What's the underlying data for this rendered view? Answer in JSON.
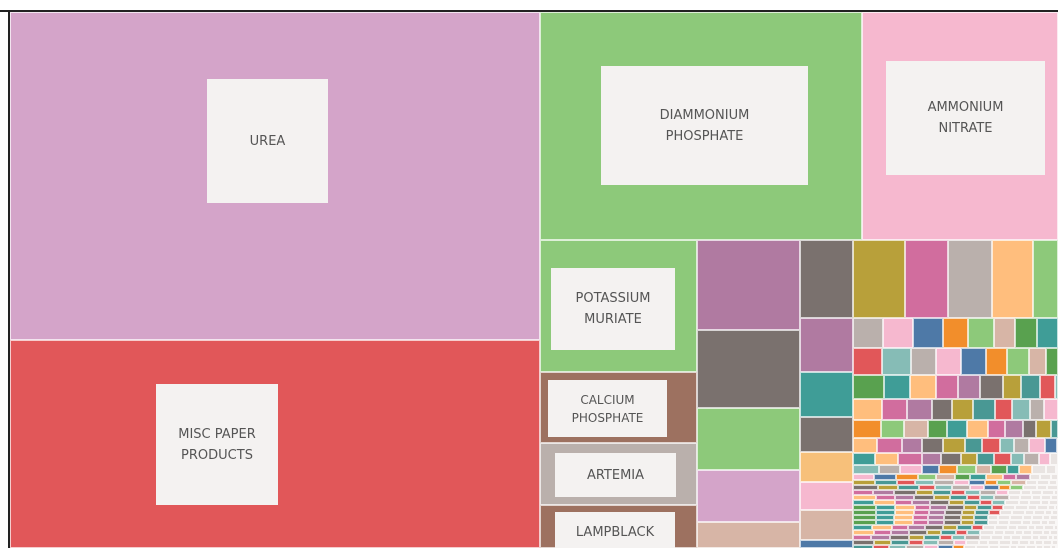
{
  "tiles": [
    {
      "label": "UREA"
    },
    {
      "label": "MISC PAPER PRODUCTS"
    },
    {
      "label": "DIAMMONIUM PHOSPHATE"
    },
    {
      "label": "AMMONIUM NITRATE"
    },
    {
      "label": "POTASSIUM MURIATE"
    },
    {
      "label": "CALCIUM PHOSPHATE"
    },
    {
      "label": "ARTEMIA"
    },
    {
      "label": "LAMPBLACK"
    }
  ]
}
